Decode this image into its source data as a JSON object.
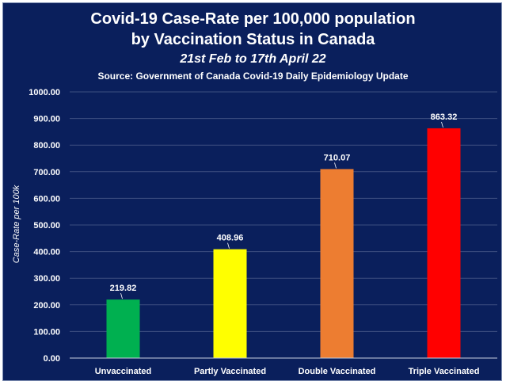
{
  "chart_data": {
    "type": "bar",
    "title": "Covid-19 Case-Rate per 100,000 population",
    "title_line2": "by Vaccination Status in Canada",
    "subtitle": "21st Feb to 17th April 22",
    "source": "Source: Government of Canada Covid-19 Daily Epidemiology Update",
    "xlabel": "",
    "ylabel": "Case-Rate per 100k",
    "ylim": [
      0,
      1000
    ],
    "yticks": [
      "0.00",
      "100.00",
      "200.00",
      "300.00",
      "400.00",
      "500.00",
      "600.00",
      "700.00",
      "800.00",
      "900.00",
      "1000.00"
    ],
    "grid": true,
    "categories": [
      "Unvaccinated",
      "Partly Vaccinated",
      "Double Vaccinated",
      "Triple Vaccinated"
    ],
    "values": [
      219.82,
      408.96,
      710.07,
      863.32
    ],
    "value_labels": [
      "219.82",
      "408.96",
      "710.07",
      "863.32"
    ],
    "colors": [
      "#00b050",
      "#ffff00",
      "#ed7d31",
      "#ff0000"
    ],
    "background": "#0a1f5c"
  }
}
